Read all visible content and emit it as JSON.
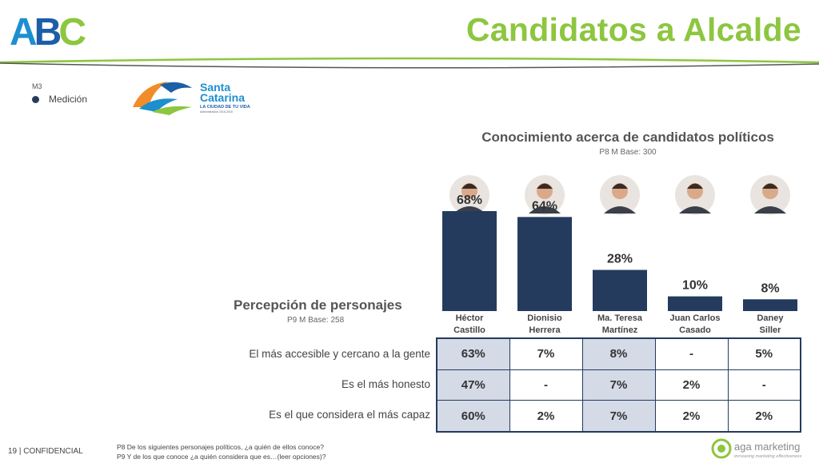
{
  "header": {
    "logo_text": "ABC",
    "title": "Candidatos a Alcalde"
  },
  "section": {
    "code": "M3",
    "label": "Medición"
  },
  "client_logo": {
    "line1": "Santa",
    "line2": "Catarina",
    "tagline": "LA CIUDAD DE TU VIDA",
    "sub": "Administración 2015-2018"
  },
  "chart_data": {
    "type": "bar",
    "title": "Conocimiento acerca de candidatos políticos",
    "subtitle": "P8 M Base: 300",
    "categories": [
      [
        "Héctor",
        "Castillo"
      ],
      [
        "Dionisio",
        "Herrera"
      ],
      [
        "Ma. Teresa",
        "Martínez"
      ],
      [
        "Juan Carlos",
        "Casado"
      ],
      [
        "Daney",
        "Siller"
      ]
    ],
    "values": [
      68,
      64,
      28,
      10,
      8
    ],
    "value_labels": [
      "68%",
      "64%",
      "28%",
      "10%",
      "8%"
    ],
    "ylim": [
      0,
      100
    ],
    "bar_color": "#243b5e"
  },
  "perception": {
    "title": "Percepción de personajes",
    "base": "P9 M Base: 258",
    "rows": [
      {
        "label": "El más accesible y cercano a la gente",
        "values": [
          "63%",
          "7%",
          "8%",
          "-",
          "5%"
        ]
      },
      {
        "label": "Es el más honesto",
        "values": [
          "47%",
          "-",
          "7%",
          "2%",
          "-"
        ]
      },
      {
        "label": "Es el que considera el más capaz",
        "values": [
          "60%",
          "2%",
          "7%",
          "2%",
          "2%"
        ]
      }
    ]
  },
  "footer": {
    "page": "19  | CONFIDENCIAL",
    "note1": "P8 De los siguientes personajes políticos, ¿a quién de ellos conoce?",
    "note2": "P9 Y de los que conoce ¿a quién considera que es…(leer opciones)?",
    "brand": "aga marketing",
    "brand_tag": "increasing marketing effectiveness"
  },
  "colors": {
    "title_green": "#8dc63f",
    "navy": "#243b5e",
    "shade": "#d4dae6"
  }
}
